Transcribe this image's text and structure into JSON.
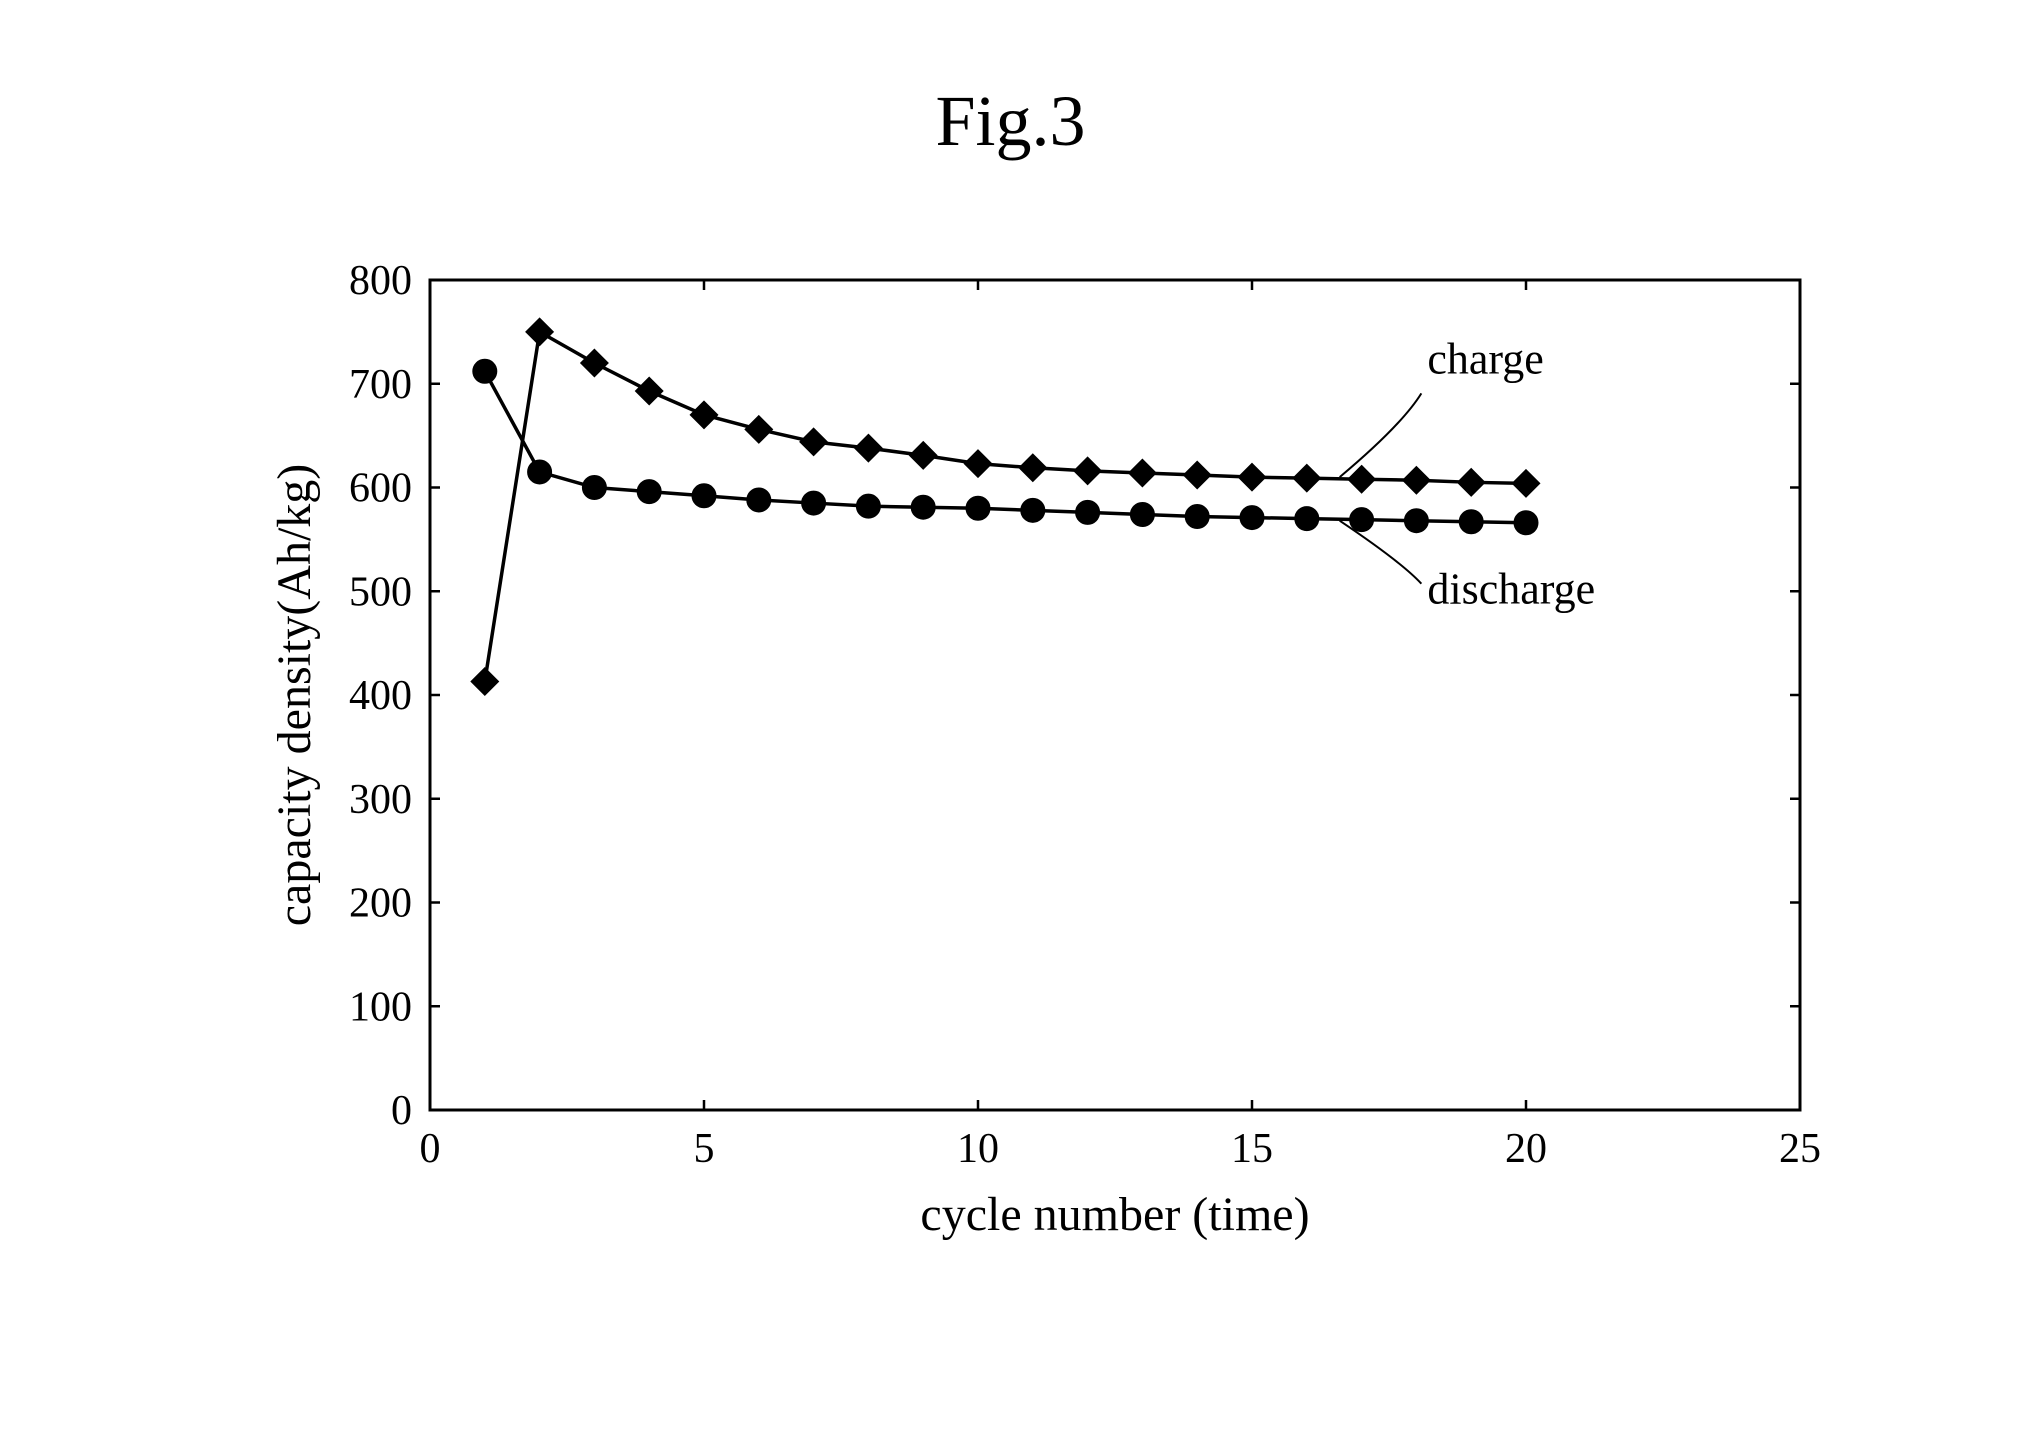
{
  "figure_title": "Fig.3",
  "chart": {
    "type": "line",
    "background_color": "#ffffff",
    "border_color": "#000000",
    "border_width": 3,
    "x_axis": {
      "label": "cycle number (time)",
      "min": 0,
      "max": 25,
      "ticks": [
        0,
        5,
        10,
        15,
        20,
        25
      ],
      "tick_fontsize": 42,
      "label_fontsize": 48
    },
    "y_axis": {
      "label": "capacity density(Ah/kg)",
      "min": 0,
      "max": 800,
      "ticks": [
        0,
        100,
        200,
        300,
        400,
        500,
        600,
        700,
        800
      ],
      "tick_fontsize": 42,
      "label_fontsize": 48
    },
    "tick_length_inside": 10,
    "series": [
      {
        "name": "charge",
        "label": "charge",
        "marker": "diamond",
        "marker_size": 24,
        "line_width": 3.5,
        "color": "#000000",
        "x": [
          1,
          2,
          3,
          4,
          5,
          6,
          7,
          8,
          9,
          10,
          11,
          12,
          13,
          14,
          15,
          16,
          17,
          18,
          19,
          20
        ],
        "y": [
          413,
          750,
          720,
          693,
          670,
          656,
          644,
          638,
          631,
          623,
          619,
          616,
          614,
          612,
          610,
          609,
          608,
          607,
          605,
          604
        ]
      },
      {
        "name": "discharge",
        "label": "discharge",
        "marker": "circle",
        "marker_size": 24,
        "line_width": 3.5,
        "color": "#000000",
        "x": [
          1,
          2,
          3,
          4,
          5,
          6,
          7,
          8,
          9,
          10,
          11,
          12,
          13,
          14,
          15,
          16,
          17,
          18,
          19,
          20
        ],
        "y": [
          712,
          615,
          600,
          596,
          592,
          588,
          585,
          582,
          581,
          580,
          578,
          576,
          574,
          572,
          571,
          570,
          569,
          568,
          567,
          566
        ]
      }
    ],
    "annotations": [
      {
        "text": "charge",
        "for_series": "charge",
        "fontsize": 44,
        "at_x": 18.2,
        "at_y": 710,
        "leader_to_x": 16.6,
        "leader_to_y": 610
      },
      {
        "text": "discharge",
        "for_series": "discharge",
        "fontsize": 44,
        "at_x": 18.2,
        "at_y": 488,
        "leader_to_x": 16.6,
        "leader_to_y": 568
      }
    ]
  }
}
